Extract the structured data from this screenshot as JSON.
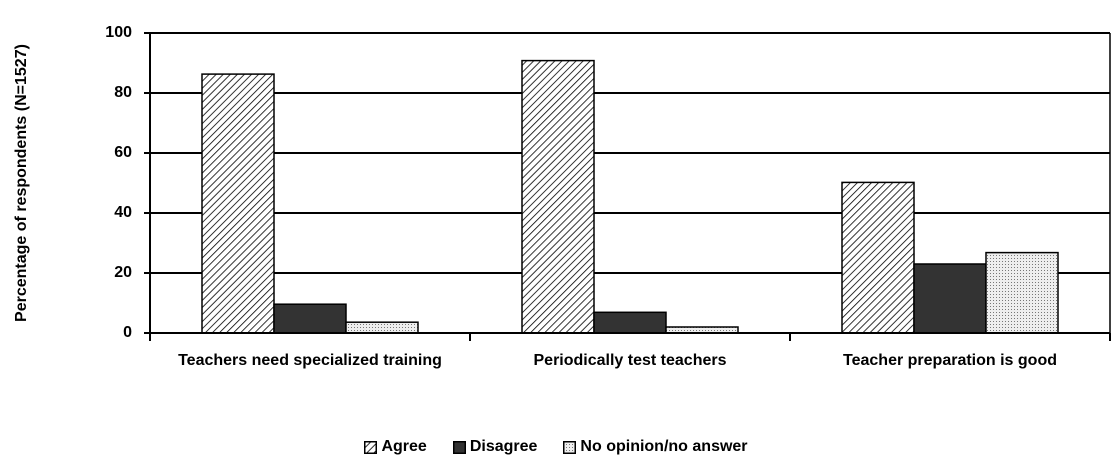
{
  "chart_data": {
    "type": "bar",
    "y_axis_label": "Percentage of respondents (N=1527)",
    "categories": [
      "Teachers need specialized training",
      "Periodically test teachers",
      "Teacher preparation is good"
    ],
    "series": [
      {
        "name": "Agree",
        "color": "#ffffff",
        "pattern": "hatch",
        "values": [
          86.3,
          90.8,
          50.2
        ]
      },
      {
        "name": "Disagree",
        "color": "#333333",
        "pattern": "solid",
        "values": [
          9.6,
          6.9,
          23
        ]
      },
      {
        "name": "No opinion/no answer",
        "color": "#e8e8e8",
        "pattern": "dots",
        "values": [
          3.6,
          2,
          26.8
        ]
      }
    ],
    "ylim": [
      0,
      100
    ],
    "yticks": [
      0,
      20,
      40,
      60,
      80,
      100
    ],
    "grid": true,
    "legend": "bottom"
  }
}
